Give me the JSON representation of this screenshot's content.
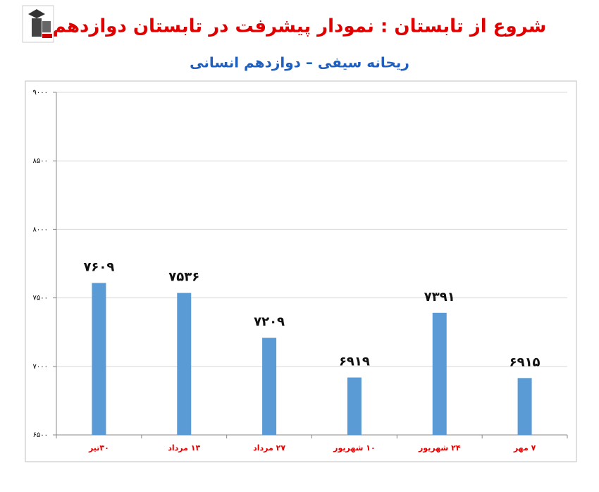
{
  "chart_data": {
    "type": "bar",
    "title": "شروع از تابستان : نمودار پیشرفت در تابستان دوازدهم",
    "subtitle": "ریحانه سیفی – دوازدهم انسانی",
    "categories": [
      "۳۰تیر",
      "۱۳ مرداد",
      "۲۷ مرداد",
      "۱۰ شهریور",
      "۲۴ شهریور",
      "۷ مهر"
    ],
    "values": [
      7609,
      7536,
      7209,
      6919,
      7391,
      6915
    ],
    "value_labels": [
      "۷۶۰۹",
      "۷۵۳۶",
      "۷۲۰۹",
      "۶۹۱۹",
      "۷۳۹۱",
      "۶۹۱۵"
    ],
    "color": "#5b9bd5",
    "ylim": [
      6500,
      9000
    ],
    "yticks": [
      {
        "value": 6500,
        "label": "۶۵۰۰"
      },
      {
        "value": 7000,
        "label": "۷۰۰۰"
      },
      {
        "value": 7500,
        "label": "۷۵۰۰"
      },
      {
        "value": 8000,
        "label": "۸۰۰۰"
      },
      {
        "value": 8500,
        "label": "۸۵۰۰"
      },
      {
        "value": 9000,
        "label": "۹۰۰۰"
      }
    ],
    "grid": true
  }
}
